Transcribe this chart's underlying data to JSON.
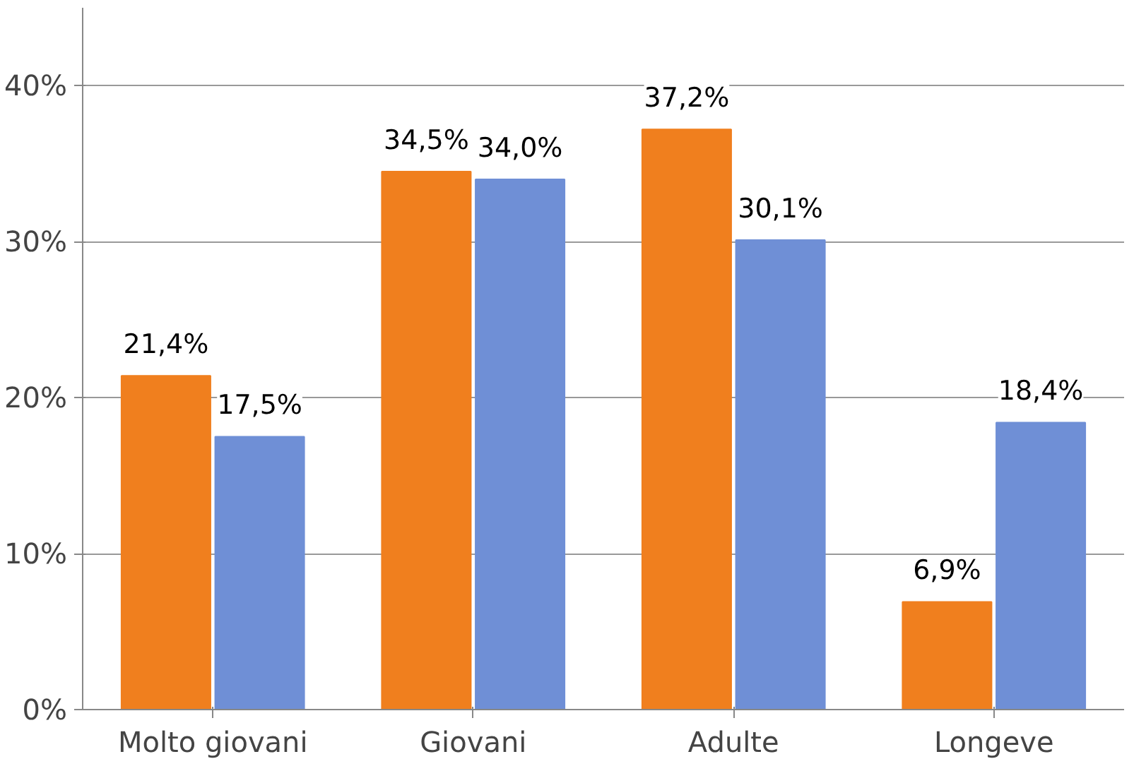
{
  "chart_data": {
    "type": "bar",
    "categories": [
      "Molto giovani",
      "Giovani",
      "Adulte",
      "Longeve"
    ],
    "series": [
      {
        "color": "#f07f1e",
        "values": [
          21.4,
          34.5,
          37.2,
          6.9
        ],
        "value_labels": [
          "21,4%",
          "34,5%",
          "37,2%",
          "6,9%"
        ]
      },
      {
        "color": "#6f8fd6",
        "values": [
          17.5,
          34.0,
          30.1,
          18.4
        ],
        "value_labels": [
          "17,5%",
          "34,0%",
          "30,1%",
          "18,4%"
        ]
      }
    ],
    "ylim": [
      0,
      45
    ],
    "yticks": [
      {
        "value": 0,
        "label": "0%"
      },
      {
        "value": 10,
        "label": "10%"
      },
      {
        "value": 20,
        "label": "20%"
      },
      {
        "value": 30,
        "label": "30%"
      },
      {
        "value": 40,
        "label": "40%"
      }
    ],
    "grid": "y"
  }
}
